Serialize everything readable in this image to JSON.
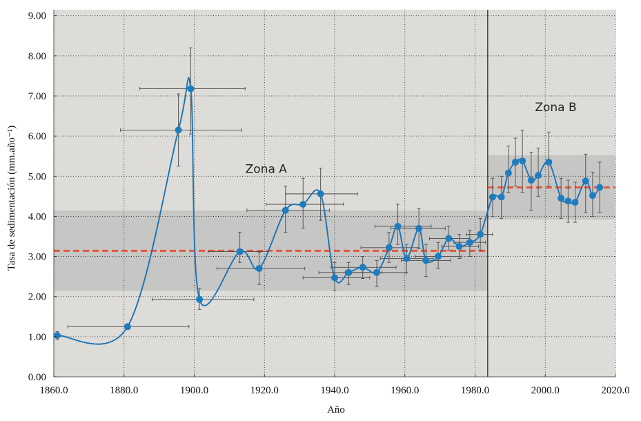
{
  "chart_data": {
    "type": "line",
    "title": "",
    "xlabel": "Año",
    "ylabel": "Tasa de sedimentación (mm.año⁻¹)",
    "xlim": [
      1860,
      2020
    ],
    "ylim": [
      0,
      9.15
    ],
    "x_tick_labels": [
      "1860.0",
      "1880.0",
      "1900.0",
      "1920.0",
      "1940.0",
      "1960.0",
      "1980.0",
      "2000.0",
      "2020.0"
    ],
    "y_tick_labels": [
      "0.00",
      "1.00",
      "2.00",
      "3.00",
      "4.00",
      "5.00",
      "6.00",
      "7.00",
      "8.00",
      "9.00"
    ],
    "grid": true,
    "divider_x": 1983.6,
    "zones": [
      {
        "label": "Zona A",
        "x_range": [
          1860,
          1983.6
        ],
        "band": [
          2.14,
          4.14
        ],
        "mean": 3.14
      },
      {
        "label": "Zona B",
        "x_range": [
          1983.6,
          2020
        ],
        "band": [
          3.92,
          5.52
        ],
        "mean": 4.72
      }
    ],
    "series": [
      {
        "points": [
          {
            "x": 1861,
            "y": 1.03,
            "y_err": [
              0.93,
              1.13
            ]
          },
          {
            "x": 1881,
            "y": 1.25,
            "x_err": [
              1864,
              1898.5
            ],
            "y_err": [
              1.18,
              1.32
            ]
          },
          {
            "x": 1895.5,
            "y": 6.15,
            "x_err": [
              1879,
              1913.5
            ],
            "y_err": [
              5.25,
              7.05
            ]
          },
          {
            "x": 1899,
            "y": 7.18,
            "x_err": [
              1884.5,
              1914.5
            ],
            "y_err": [
              6.05,
              8.2
            ]
          },
          {
            "x": 1901.5,
            "y": 1.93,
            "x_err": [
              1888,
              1917
            ],
            "y_err": [
              1.68,
              2.2
            ]
          },
          {
            "x": 1913,
            "y": 3.12,
            "x_err": [
              1904,
              1921
            ],
            "y_err": [
              2.85,
              3.6
            ]
          },
          {
            "x": 1918.5,
            "y": 2.7,
            "x_err": [
              1906.5,
              1931.5
            ],
            "y_err": [
              2.3,
              3.1
            ]
          },
          {
            "x": 1926,
            "y": 4.15,
            "x_err": [
              1915,
              1938.5
            ],
            "y_err": [
              3.6,
              4.75
            ]
          },
          {
            "x": 1931,
            "y": 4.3,
            "x_err": [
              1920.5,
              1942.5
            ],
            "y_err": [
              3.7,
              4.95
            ]
          },
          {
            "x": 1936,
            "y": 4.56,
            "x_err": [
              1926,
              1946.5
            ],
            "y_err": [
              3.9,
              5.2
            ]
          },
          {
            "x": 1940,
            "y": 2.47,
            "x_err": [
              1931,
              1950
            ],
            "y_err": [
              2.15,
              2.85
            ]
          },
          {
            "x": 1944,
            "y": 2.6,
            "x_err": [
              1935.5,
              1953.5
            ],
            "y_err": [
              2.3,
              2.85
            ]
          },
          {
            "x": 1948,
            "y": 2.73,
            "x_err": [
              1939,
              1957.5
            ],
            "y_err": [
              2.45,
              3.0
            ]
          },
          {
            "x": 1952,
            "y": 2.6,
            "x_err": [
              1943,
              1960.5
            ],
            "y_err": [
              2.25,
              2.9
            ]
          },
          {
            "x": 1955.5,
            "y": 3.22,
            "x_err": [
              1947.5,
              1964
            ],
            "y_err": [
              2.85,
              3.6
            ]
          },
          {
            "x": 1958,
            "y": 3.75,
            "x_err": [
              1951.5,
              1967.5
            ],
            "y_err": [
              3.3,
              4.3
            ]
          },
          {
            "x": 1960.5,
            "y": 2.95,
            "x_err": [
              1953,
              1968
            ],
            "y_err": [
              2.6,
              3.3
            ]
          },
          {
            "x": 1964,
            "y": 3.7,
            "x_err": [
              1956,
              1971.5
            ],
            "y_err": [
              3.2,
              4.2
            ]
          },
          {
            "x": 1966,
            "y": 2.9,
            "x_err": [
              1959,
              1973
            ],
            "y_err": [
              2.5,
              3.3
            ]
          },
          {
            "x": 1969.5,
            "y": 3.0,
            "x_err": [
              1963,
              1976
            ],
            "y_err": [
              2.7,
              3.35
            ]
          },
          {
            "x": 1972.5,
            "y": 3.45,
            "x_err": [
              1967,
              1978.5
            ],
            "y_err": [
              3.15,
              3.75
            ]
          },
          {
            "x": 1975.5,
            "y": 3.25,
            "x_err": [
              1970.5,
              1981
            ],
            "y_err": [
              2.95,
              3.55
            ]
          },
          {
            "x": 1978.5,
            "y": 3.35,
            "x_err": [
              1974,
              1983
            ],
            "y_err": [
              3.0,
              3.65
            ]
          },
          {
            "x": 1981.5,
            "y": 3.55,
            "x_err": [
              1977.5,
              1985
            ],
            "y_err": [
              3.15,
              3.95
            ]
          },
          {
            "x": 1985,
            "y": 4.48,
            "y_err": [
              4.0,
              4.95
            ]
          },
          {
            "x": 1987.5,
            "y": 4.48,
            "y_err": [
              3.95,
              5.0
            ]
          },
          {
            "x": 1989.5,
            "y": 5.08,
            "y_err": [
              4.6,
              5.75
            ]
          },
          {
            "x": 1991.5,
            "y": 5.35,
            "y_err": [
              4.75,
              5.95
            ]
          },
          {
            "x": 1993.5,
            "y": 5.38,
            "y_err": [
              4.6,
              6.15
            ]
          },
          {
            "x": 1996,
            "y": 4.9,
            "y_err": [
              4.15,
              5.6
            ]
          },
          {
            "x": 1998,
            "y": 5.02,
            "y_err": [
              4.5,
              5.7
            ]
          },
          {
            "x": 2001,
            "y": 5.35,
            "y_err": [
              4.75,
              6.1
            ]
          },
          {
            "x": 2004.5,
            "y": 4.45,
            "y_err": [
              3.95,
              4.95
            ]
          },
          {
            "x": 2006.5,
            "y": 4.38,
            "y_err": [
              3.85,
              4.9
            ]
          },
          {
            "x": 2008.5,
            "y": 4.35,
            "y_err": [
              3.85,
              4.85
            ]
          },
          {
            "x": 2011.5,
            "y": 4.88,
            "y_err": [
              4.1,
              5.55
            ]
          },
          {
            "x": 2013.5,
            "y": 4.52,
            "y_err": [
              4.0,
              5.1
            ]
          },
          {
            "x": 2015.5,
            "y": 4.72,
            "y_err": [
              4.1,
              5.35
            ]
          }
        ]
      }
    ]
  },
  "colors": {
    "plot_bg": "#dddcd8",
    "band": "#c6c6c5",
    "line": "#1a73b4",
    "marker": "#1f7cbd",
    "mean_line": "#e5573d",
    "error_bar": "#4a4a4a",
    "grid": "#1e1e1e",
    "divider": "#222222"
  }
}
